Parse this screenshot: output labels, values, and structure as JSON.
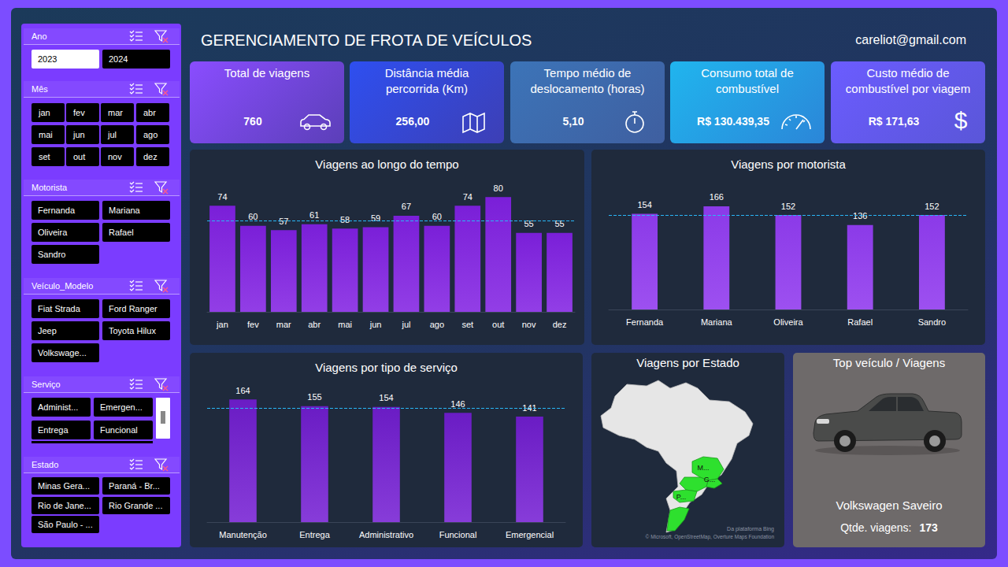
{
  "header": {
    "title": "GERENCIAMENTO DE FROTA DE VEÍCULOS",
    "email": "careliot@gmail.com"
  },
  "slicers": [
    {
      "title": "Ano",
      "items": [
        "2023",
        "2024"
      ],
      "selected": [
        "2023"
      ]
    },
    {
      "title": "Mês",
      "items": [
        "jan",
        "fev",
        "mar",
        "abr",
        "mai",
        "jun",
        "jul",
        "ago",
        "set",
        "out",
        "nov",
        "dez"
      ],
      "selected": []
    },
    {
      "title": "Motorista",
      "items": [
        "Fernanda",
        "Mariana",
        "Oliveira",
        "Rafael",
        "Sandro"
      ],
      "selected": []
    },
    {
      "title": "Veículo_Modelo",
      "items": [
        "Fiat Strada",
        "Ford Ranger",
        "Jeep",
        "Toyota Hilux",
        "Volkswage..."
      ],
      "selected": []
    },
    {
      "title": "Serviço",
      "items": [
        "Administ...",
        "Emergen...",
        "Entrega",
        "Funcional"
      ],
      "selected": []
    },
    {
      "title": "Estado",
      "items": [
        "Minas Gera...",
        "Paraná - Br...",
        "Rio de Jane...",
        "Rio Grande ...",
        "São Paulo - ..."
      ],
      "selected": []
    }
  ],
  "kpis": [
    {
      "label": "Total de viagens",
      "value": "760"
    },
    {
      "label": "Distância média percorrida (Km)",
      "value": "256,00"
    },
    {
      "label": "Tempo médio de deslocamento (horas)",
      "value": "5,10"
    },
    {
      "label": "Consumo total de combustível",
      "value": "R$ 130.439,35"
    },
    {
      "label": "Custo médio de combustível por viagem",
      "value": "R$ 171,63",
      "symbol": "$"
    }
  ],
  "chart_data": [
    {
      "type": "bar",
      "title": "Viagens ao longo do tempo",
      "categories": [
        "jan",
        "fev",
        "mar",
        "abr",
        "mai",
        "jun",
        "jul",
        "ago",
        "set",
        "out",
        "nov",
        "dez"
      ],
      "values": [
        74,
        60,
        57,
        61,
        58,
        59,
        67,
        60,
        74,
        80,
        55,
        55
      ],
      "mean_line": 63.33,
      "color": "#7a1fd8",
      "ylim": [
        0,
        90
      ],
      "data_labels": true,
      "tick_labels": "x",
      "grid": false
    },
    {
      "type": "bar",
      "title": "Viagens por motorista",
      "categories": [
        "Fernanda",
        "Mariana",
        "Oliveira",
        "Rafael",
        "Sandro"
      ],
      "values": [
        154,
        166,
        152,
        136,
        152
      ],
      "mean_line": 152,
      "color": "#8b3ae8",
      "ylim": [
        0,
        190
      ],
      "data_labels": true,
      "tick_labels": "x",
      "grid": false
    },
    {
      "type": "bar",
      "title": "Viagens por tipo de serviço",
      "categories": [
        "Manutenção",
        "Entrega",
        "Administrativo",
        "Funcional",
        "Emergencial"
      ],
      "values": [
        164,
        155,
        154,
        146,
        141
      ],
      "mean_line": 152,
      "color": "#6a1cc4",
      "ylim": [
        0,
        180
      ],
      "data_labels": true,
      "tick_labels": "x",
      "grid": false
    }
  ],
  "map": {
    "title": "Viagens por Estado",
    "labels": [
      "M...",
      "G...",
      "P..."
    ],
    "credits": [
      "Da plataforma Bing",
      "© Microsoft, OpenStreetMap, Overture Maps Foundation"
    ]
  },
  "top_vehicle": {
    "title": "Top veículo / Viagens",
    "name": "Volkswagen Saveiro",
    "count_label": "Qtde. viagens:",
    "count": 173
  }
}
